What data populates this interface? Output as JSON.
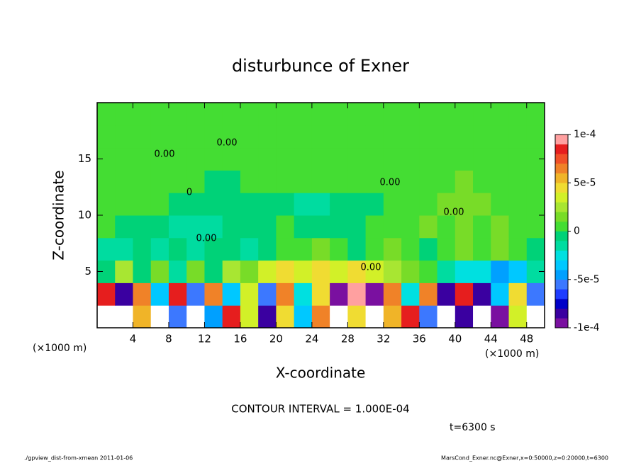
{
  "chart_data": {
    "type": "heatmap",
    "title": "disturbunce of Exner",
    "x_label": "X-coordinate",
    "y_label": "Z-coordinate",
    "x_unit_left": "(×1000 m)",
    "x_unit_right": "(×1000 m)",
    "contour_interval": "CONTOUR INTERVAL = 1.000E-04",
    "time_label": "t=6300 s",
    "footer_left": "./gpview_dist-from-xmean   2011-01-06",
    "footer_right": "MarsCond_Exner.nc@Exner,x=0:50000,z=0:20000,t=6300",
    "contour_labels": [
      "0.00",
      "0.00",
      "0",
      "0.00",
      "0.00",
      "0.00",
      "0.00"
    ],
    "xlim": [
      0,
      50
    ],
    "ylim": [
      0,
      20
    ],
    "xticks": [
      4,
      8,
      12,
      16,
      20,
      24,
      28,
      32,
      36,
      40,
      44,
      48
    ],
    "yticks": [
      5,
      10,
      15
    ],
    "x": [
      1,
      3,
      5,
      7,
      9,
      11,
      13,
      15,
      17,
      19,
      21,
      23,
      25,
      27,
      29,
      31,
      33,
      35,
      37,
      39,
      41,
      43,
      45,
      47,
      49
    ],
    "y": [
      1,
      3,
      5,
      7,
      9,
      11,
      13,
      15,
      17,
      19
    ],
    "z": [
      [
        0.00012,
        -0.00012,
        5e-05,
        0.00012,
        -6e-05,
        0.00012,
        -5e-05,
        8e-05,
        3e-05,
        -8e-05,
        4e-05,
        -4e-05,
        6e-05,
        -0.00012,
        4e-05,
        -0.00012,
        5e-05,
        8e-05,
        -6e-05,
        0.00012,
        -8e-05,
        0.00012,
        -0.0001,
        3e-05,
        0.00011
      ],
      [
        8e-05,
        -8e-05,
        6e-05,
        -4e-05,
        8e-05,
        -6e-05,
        6e-05,
        -4e-05,
        3e-05,
        -6e-05,
        6e-05,
        -3e-05,
        4e-05,
        -0.0001,
        9e-05,
        -9e-05,
        6e-05,
        -3e-05,
        6e-05,
        -8e-05,
        8e-05,
        -8e-05,
        -4e-05,
        4e-05,
        -6e-05
      ],
      [
        -1e-05,
        2e-05,
        -1e-05,
        1e-05,
        -2e-05,
        1e-05,
        -1e-05,
        2e-05,
        1e-05,
        3e-05,
        4e-05,
        3e-05,
        4e-05,
        3e-05,
        4e-05,
        3e-05,
        2e-05,
        1e-05,
        0,
        -2e-05,
        -3e-05,
        -3e-05,
        -5e-05,
        -4e-05,
        -2e-05
      ],
      [
        -2e-05,
        -2e-05,
        -1e-05,
        -2e-05,
        -1e-05,
        -2e-05,
        -1e-05,
        -1e-05,
        -2e-05,
        -1e-05,
        0,
        0,
        1e-05,
        0,
        -1e-05,
        0,
        1e-05,
        0,
        -1e-05,
        0,
        1e-05,
        0,
        1e-05,
        0,
        -1e-05
      ],
      [
        0,
        -1e-05,
        -1e-05,
        -1e-05,
        -2e-05,
        -2e-05,
        -2e-05,
        -1e-05,
        -1e-05,
        -1e-05,
        0,
        -1e-05,
        -1e-05,
        -1e-05,
        -1e-05,
        0,
        0,
        0,
        1e-05,
        0,
        1e-05,
        0,
        1e-05,
        0,
        0
      ],
      [
        0,
        0,
        0,
        0,
        -1e-05,
        -1e-05,
        -1e-05,
        -1e-05,
        -1e-05,
        -1e-05,
        -1e-05,
        -2e-05,
        -2e-05,
        -1e-05,
        -1e-05,
        -1e-05,
        0,
        0,
        0,
        1e-05,
        1e-05,
        1e-05,
        0,
        0,
        0
      ],
      [
        0,
        0,
        0,
        0,
        0,
        0,
        -1e-05,
        -1e-05,
        0,
        0,
        0,
        0,
        0,
        0,
        0,
        0,
        0,
        0,
        0,
        0,
        1e-05,
        0,
        0,
        0,
        0
      ],
      [
        0,
        0,
        0,
        0,
        0,
        0,
        0,
        0,
        0,
        0,
        0,
        0,
        0,
        0,
        0,
        0,
        0,
        0,
        0,
        0,
        0,
        0,
        0,
        0,
        0
      ],
      [
        0,
        0,
        0,
        0,
        0,
        0,
        0,
        0,
        0,
        0,
        0,
        0,
        0,
        0,
        0,
        0,
        0,
        0,
        0,
        0,
        0,
        0,
        0,
        0,
        0
      ],
      [
        0,
        0,
        0,
        0,
        0,
        0,
        0,
        0,
        0,
        0,
        0,
        0,
        0,
        0,
        0,
        0,
        0,
        0,
        0,
        0,
        0,
        0,
        0,
        0,
        0
      ]
    ],
    "clim": [
      -0.0001,
      0.0001
    ],
    "cticks": [
      {
        "value": 0.0001,
        "label": "1e-4"
      },
      {
        "value": 5e-05,
        "label": "5e-5"
      },
      0,
      {
        "value": -5e-05,
        "label": "-5e-5"
      },
      {
        "value": -0.0001,
        "label": "-1e-4"
      }
    ],
    "colors": [
      "#7a10a0",
      "#3a00a0",
      "#0000c8",
      "#1e3cff",
      "#3c78ff",
      "#00a0ff",
      "#00c8ff",
      "#00e0e0",
      "#00dca0",
      "#00d278",
      "#44dd33",
      "#78dc28",
      "#a8e632",
      "#d2f028",
      "#f0dc32",
      "#f0b428",
      "#f08228",
      "#f05028",
      "#e61e1e",
      "#ffa0a0"
    ],
    "out_of_range_color": "#ffffff"
  }
}
